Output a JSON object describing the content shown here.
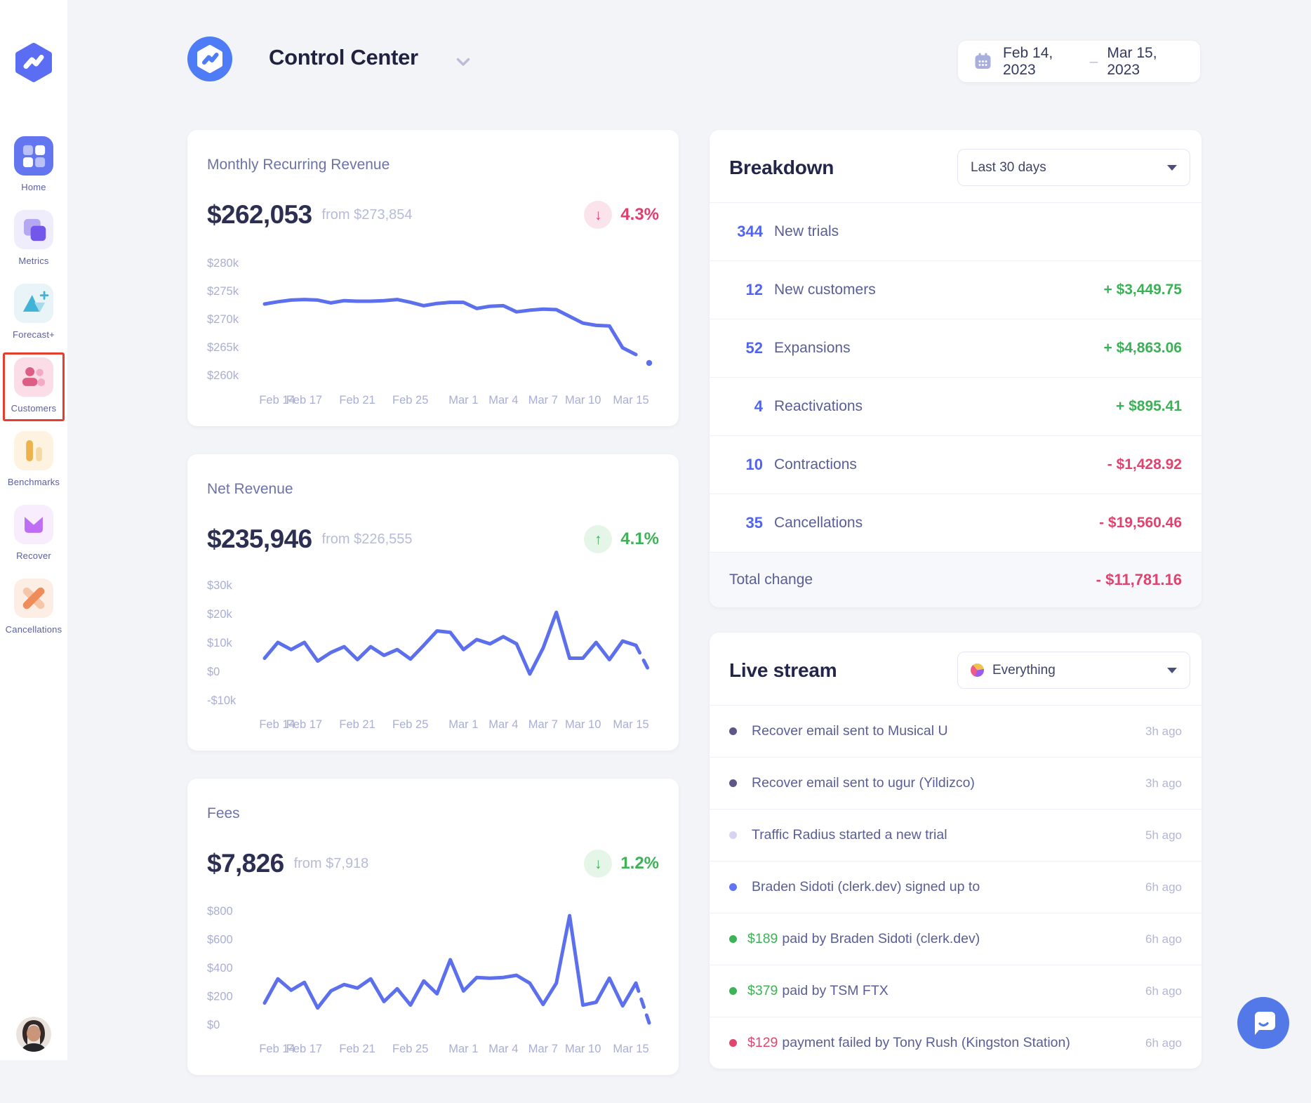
{
  "sidebar": {
    "items": [
      {
        "id": "home",
        "icon": "home-icon",
        "label": "Home",
        "highlighted": false
      },
      {
        "id": "metrics",
        "icon": "metrics-icon",
        "label": "Metrics",
        "highlighted": false
      },
      {
        "id": "forecast",
        "icon": "forecast-icon",
        "label": "Forecast+",
        "highlighted": false
      },
      {
        "id": "customers",
        "icon": "customers-icon",
        "label": "Customers",
        "highlighted": true
      },
      {
        "id": "benchmarks",
        "icon": "benchmarks-icon",
        "label": "Benchmarks",
        "highlighted": false
      },
      {
        "id": "recover",
        "icon": "recover-icon",
        "label": "Recover",
        "highlighted": false
      },
      {
        "id": "cancellations",
        "icon": "cancellations-icon",
        "label": "Cancellations",
        "highlighted": false
      }
    ],
    "highlight_color": "#e2402c"
  },
  "header": {
    "title": "Control Center",
    "date_range": {
      "start": "Feb 14, 2023",
      "separator": "–",
      "end": "Mar 15, 2023"
    }
  },
  "metric_cards": [
    {
      "id": "mrr",
      "title": "Monthly Recurring Revenue",
      "value": "$262,053",
      "from_label": "from $273,854",
      "change": {
        "value": "4.3%",
        "direction": "down",
        "sentiment": "negative"
      }
    },
    {
      "id": "net-revenue",
      "title": "Net Revenue",
      "value": "$235,946",
      "from_label": "from $226,555",
      "change": {
        "value": "4.1%",
        "direction": "up",
        "sentiment": "positive"
      }
    },
    {
      "id": "fees",
      "title": "Fees",
      "value": "$7,826",
      "from_label": "from $7,918",
      "change": {
        "value": "1.2%",
        "direction": "down",
        "sentiment": "positive"
      }
    }
  ],
  "breakdown": {
    "title": "Breakdown",
    "filter_label": "Last 30 days",
    "rows": [
      {
        "count": "344",
        "label": "New trials",
        "amount": "",
        "tone": "none"
      },
      {
        "count": "12",
        "label": "New customers",
        "amount": "+ $3,449.75",
        "tone": "positive"
      },
      {
        "count": "52",
        "label": "Expansions",
        "amount": "+ $4,863.06",
        "tone": "positive"
      },
      {
        "count": "4",
        "label": "Reactivations",
        "amount": "+ $895.41",
        "tone": "positive"
      },
      {
        "count": "10",
        "label": "Contractions",
        "amount": "- $1,428.92",
        "tone": "negative"
      },
      {
        "count": "35",
        "label": "Cancellations",
        "amount": "- $19,560.46",
        "tone": "negative"
      }
    ],
    "total": {
      "label": "Total change",
      "amount": "- $11,781.16",
      "tone": "negative"
    }
  },
  "live_stream": {
    "title": "Live stream",
    "filter_label": "Everything",
    "items": [
      {
        "category": "recover",
        "amount": "",
        "text": "Recover email sent to Musical U",
        "time": "3h ago"
      },
      {
        "category": "recover",
        "amount": "",
        "text": "Recover email sent to ugur (Yildizco)",
        "time": "3h ago"
      },
      {
        "category": "trial",
        "amount": "",
        "text": "Traffic Radius started a new trial",
        "time": "5h ago"
      },
      {
        "category": "signup",
        "amount": "",
        "text": "Braden Sidoti (clerk.dev) signed up to",
        "time": "6h ago"
      },
      {
        "category": "payment",
        "amount": "$189",
        "text": "paid by Braden Sidoti (clerk.dev)",
        "time": "6h ago"
      },
      {
        "category": "payment",
        "amount": "$379",
        "text": "paid by TSM FTX",
        "time": "6h ago"
      },
      {
        "category": "payment_failed",
        "amount": "$129",
        "text": "payment failed by Tony Rush (Kingston Station)",
        "time": "6h ago"
      }
    ],
    "category_colors": {
      "recover": "#5e5786",
      "trial": "#d9d3f0",
      "signup": "#6373f2",
      "payment": "#3db257",
      "payment_failed": "#e0476e"
    }
  },
  "colors": {
    "accent_blue": "#5c70ee",
    "positive_green": "#3bb157",
    "negative_red": "#e0436e",
    "count_blue": "#5064f1",
    "sidebar_highlight": "#e2402c"
  },
  "chart_data": [
    {
      "type": "line",
      "title": "Monthly Recurring Revenue",
      "x_ticks": [
        {
          "label": "Feb 14",
          "pos": 0
        },
        {
          "label": "Feb 17",
          "pos": 0.103
        },
        {
          "label": "Feb 21",
          "pos": 0.241
        },
        {
          "label": "Feb 25",
          "pos": 0.379
        },
        {
          "label": "Mar 1",
          "pos": 0.517
        },
        {
          "label": "Mar 4",
          "pos": 0.621
        },
        {
          "label": "Mar 7",
          "pos": 0.724
        },
        {
          "label": "Mar 10",
          "pos": 0.828
        },
        {
          "label": "Mar 15",
          "pos": 1
        }
      ],
      "y_ticks": [
        {
          "value": 280000,
          "label": "$280k"
        },
        {
          "value": 275000,
          "label": "$275k"
        },
        {
          "value": 270000,
          "label": "$270k"
        },
        {
          "value": 265000,
          "label": "$265k"
        },
        {
          "value": 260000,
          "label": "$260k"
        }
      ],
      "ylim": [
        258600,
        281600
      ],
      "values": [
        272600,
        273000,
        273300,
        273400,
        273300,
        272800,
        273200,
        273100,
        273100,
        273200,
        273400,
        272900,
        272300,
        272700,
        272900,
        272900,
        271800,
        272200,
        272300,
        271200,
        271500,
        271700,
        271600,
        270400,
        269200,
        268800,
        268700,
        264800,
        263600,
        262100
      ],
      "tail": "dot",
      "grid": false,
      "legend": false
    },
    {
      "type": "line",
      "title": "Net Revenue",
      "x_ticks": [
        {
          "label": "Feb 14",
          "pos": 0
        },
        {
          "label": "Feb 17",
          "pos": 0.103
        },
        {
          "label": "Feb 21",
          "pos": 0.241
        },
        {
          "label": "Feb 25",
          "pos": 0.379
        },
        {
          "label": "Mar 1",
          "pos": 0.517
        },
        {
          "label": "Mar 4",
          "pos": 0.621
        },
        {
          "label": "Mar 7",
          "pos": 0.724
        },
        {
          "label": "Mar 10",
          "pos": 0.828
        },
        {
          "label": "Mar 15",
          "pos": 1
        }
      ],
      "y_ticks": [
        {
          "value": 30000,
          "label": "$30k"
        },
        {
          "value": 20000,
          "label": "$20k"
        },
        {
          "value": 10000,
          "label": "$10k"
        },
        {
          "value": 0,
          "label": "$0"
        },
        {
          "value": -10000,
          "label": "-$10k"
        }
      ],
      "ylim": [
        -12500,
        32500
      ],
      "values": [
        4500,
        10000,
        7500,
        10000,
        3500,
        6500,
        8500,
        4000,
        8500,
        5500,
        7500,
        4200,
        9000,
        14000,
        13500,
        7500,
        11000,
        9500,
        12000,
        9500,
        -1000,
        8000,
        20500,
        4500,
        4500,
        10000,
        4000,
        10500,
        9000,
        0
      ],
      "tail": "dash",
      "dash_from": 28,
      "grid": false,
      "legend": false
    },
    {
      "type": "line",
      "title": "Fees",
      "x_ticks": [
        {
          "label": "Feb 14",
          "pos": 0
        },
        {
          "label": "Feb 17",
          "pos": 0.103
        },
        {
          "label": "Feb 21",
          "pos": 0.241
        },
        {
          "label": "Feb 25",
          "pos": 0.379
        },
        {
          "label": "Mar 1",
          "pos": 0.517
        },
        {
          "label": "Mar 4",
          "pos": 0.621
        },
        {
          "label": "Mar 7",
          "pos": 0.724
        },
        {
          "label": "Mar 10",
          "pos": 0.828
        },
        {
          "label": "Mar 15",
          "pos": 1
        }
      ],
      "y_ticks": [
        {
          "value": 800,
          "label": "$800"
        },
        {
          "value": 600,
          "label": "$600"
        },
        {
          "value": 400,
          "label": "$400"
        },
        {
          "value": 200,
          "label": "$200"
        },
        {
          "value": 0,
          "label": "$0"
        }
      ],
      "ylim": [
        -50,
        860
      ],
      "values": [
        150,
        320,
        240,
        295,
        115,
        235,
        280,
        255,
        320,
        160,
        250,
        135,
        305,
        215,
        455,
        235,
        330,
        325,
        330,
        345,
        290,
        140,
        290,
        765,
        135,
        155,
        325,
        130,
        290,
        10
      ],
      "tail": "dash",
      "dash_from": 28,
      "grid": false,
      "legend": false
    }
  ]
}
